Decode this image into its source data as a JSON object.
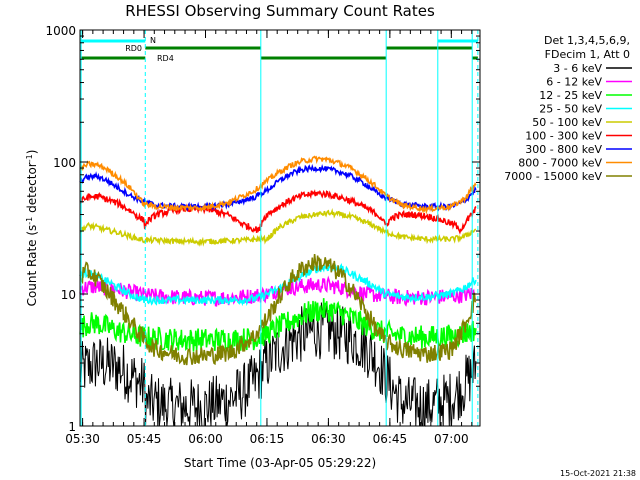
{
  "chart_data": {
    "type": "line",
    "title": "RHESSI Observing Summary Count Rates",
    "xlabel": "Start Time (03-Apr-05 05:29:22)",
    "ylabel_main": "Count Rate (s",
    "ylabel_sup1": "-1",
    "ylabel_mid": " detector",
    "ylabel_sup2": "-1",
    "ylabel_end": ")",
    "yscale": "log",
    "xlim": [
      5.4894,
      7.1167
    ],
    "ylim": [
      1,
      1000
    ],
    "x_ticks": [
      {
        "value": 5.5,
        "label": "05:30"
      },
      {
        "value": 5.75,
        "label": "05:45"
      },
      {
        "value": 6.0,
        "label": "06:00"
      },
      {
        "value": 6.25,
        "label": "06:15"
      },
      {
        "value": 6.5,
        "label": "06:30"
      },
      {
        "value": 6.75,
        "label": "06:45"
      },
      {
        "value": 7.0,
        "label": "07:00"
      }
    ],
    "x_minor_step_hours": 0.041667,
    "y_ticks": [
      {
        "value": 1,
        "label": "1"
      },
      {
        "value": 10,
        "label": "10"
      },
      {
        "value": 100,
        "label": "100"
      },
      {
        "value": 1000,
        "label": "1000"
      }
    ],
    "legend": {
      "placement": "right",
      "header_lines": [
        "Det 1,3,4,5,6,9,",
        "FDecim 1, Att 0"
      ]
    },
    "series": [
      {
        "name": "3 - 6 keV",
        "color": "#000000",
        "noise": 0.22,
        "points": [
          [
            5.49,
            2.6
          ],
          [
            5.52,
            2.8
          ],
          [
            5.56,
            3.0
          ],
          [
            5.6,
            2.9
          ],
          [
            5.64,
            2.8
          ],
          [
            5.67,
            2.6
          ],
          [
            5.71,
            2.3
          ],
          [
            5.75,
            2.0
          ],
          [
            5.76,
            1.5
          ],
          [
            5.8,
            1.5
          ],
          [
            5.85,
            1.4
          ],
          [
            5.9,
            1.4
          ],
          [
            5.95,
            1.4
          ],
          [
            6.0,
            1.4
          ],
          [
            6.05,
            1.5
          ],
          [
            6.1,
            1.6
          ],
          [
            6.15,
            1.8
          ],
          [
            6.2,
            2.2
          ],
          [
            6.25,
            3.0
          ],
          [
            6.3,
            3.8
          ],
          [
            6.35,
            4.5
          ],
          [
            6.4,
            5.0
          ],
          [
            6.45,
            5.3
          ],
          [
            6.5,
            5.3
          ],
          [
            6.55,
            5.0
          ],
          [
            6.6,
            4.6
          ],
          [
            6.65,
            4.0
          ],
          [
            6.7,
            3.1
          ],
          [
            6.73,
            2.4
          ],
          [
            6.8,
            1.5
          ],
          [
            6.9,
            1.4
          ],
          [
            7.0,
            1.6
          ],
          [
            7.05,
            2.0
          ],
          [
            7.1,
            2.8
          ]
        ]
      },
      {
        "name": "6 - 12 keV",
        "color": "#ff00ff",
        "noise": 0.06,
        "points": [
          [
            5.49,
            11
          ],
          [
            5.52,
            11.3
          ],
          [
            5.56,
            11.3
          ],
          [
            5.6,
            11.1
          ],
          [
            5.65,
            10.8
          ],
          [
            5.7,
            10.3
          ],
          [
            5.75,
            9.8
          ],
          [
            5.8,
            9.6
          ],
          [
            5.9,
            9.4
          ],
          [
            6.0,
            9.3
          ],
          [
            6.1,
            9.4
          ],
          [
            6.2,
            9.7
          ],
          [
            6.25,
            10.0
          ],
          [
            6.3,
            10.8
          ],
          [
            6.4,
            11.5
          ],
          [
            6.45,
            11.7
          ],
          [
            6.5,
            11.6
          ],
          [
            6.55,
            11.2
          ],
          [
            6.6,
            10.6
          ],
          [
            6.65,
            10.0
          ],
          [
            6.72,
            9.7
          ],
          [
            6.8,
            9.4
          ],
          [
            6.9,
            9.4
          ],
          [
            7.0,
            9.6
          ],
          [
            7.05,
            9.8
          ],
          [
            7.1,
            10.2
          ]
        ]
      },
      {
        "name": "12 - 25 keV",
        "color": "#00ff00",
        "noise": 0.09,
        "points": [
          [
            5.49,
            5.5
          ],
          [
            5.52,
            6.0
          ],
          [
            5.56,
            6.0
          ],
          [
            5.6,
            5.6
          ],
          [
            5.65,
            5.2
          ],
          [
            5.7,
            4.9
          ],
          [
            5.75,
            4.7
          ],
          [
            5.8,
            4.6
          ],
          [
            5.9,
            4.5
          ],
          [
            6.0,
            4.5
          ],
          [
            6.1,
            4.5
          ],
          [
            6.2,
            4.6
          ],
          [
            6.25,
            5.0
          ],
          [
            6.3,
            5.6
          ],
          [
            6.35,
            6.3
          ],
          [
            6.4,
            7.0
          ],
          [
            6.45,
            7.5
          ],
          [
            6.5,
            7.6
          ],
          [
            6.55,
            7.2
          ],
          [
            6.6,
            6.5
          ],
          [
            6.65,
            5.8
          ],
          [
            6.72,
            5.1
          ],
          [
            6.8,
            4.8
          ],
          [
            6.9,
            4.7
          ],
          [
            7.0,
            4.8
          ],
          [
            7.05,
            5.0
          ],
          [
            7.1,
            5.4
          ]
        ]
      },
      {
        "name": "25 - 50 keV",
        "color": "#00ffff",
        "noise": 0.03,
        "points": [
          [
            5.49,
            14
          ],
          [
            5.52,
            14.5
          ],
          [
            5.56,
            13.5
          ],
          [
            5.6,
            12.5
          ],
          [
            5.65,
            11
          ],
          [
            5.7,
            9.8
          ],
          [
            5.75,
            9.0
          ],
          [
            5.76,
            9.0
          ],
          [
            5.8,
            9.0
          ],
          [
            5.9,
            9.0
          ],
          [
            6.0,
            9.0
          ],
          [
            6.1,
            9.0
          ],
          [
            6.15,
            9.0
          ],
          [
            6.22,
            9.4
          ],
          [
            6.3,
            11
          ],
          [
            6.4,
            14
          ],
          [
            6.45,
            15.5
          ],
          [
            6.5,
            16.0
          ],
          [
            6.55,
            15.5
          ],
          [
            6.6,
            14
          ],
          [
            6.65,
            12.5
          ],
          [
            6.7,
            11
          ],
          [
            6.73,
            10
          ],
          [
            6.8,
            9.5
          ],
          [
            6.9,
            9.5
          ],
          [
            7.0,
            10
          ],
          [
            7.05,
            11
          ],
          [
            7.1,
            13
          ]
        ]
      },
      {
        "name": "50 - 100 keV",
        "color": "#cccc00",
        "noise": 0.02,
        "points": [
          [
            5.49,
            30
          ],
          [
            5.52,
            33
          ],
          [
            5.56,
            32
          ],
          [
            5.6,
            30.5
          ],
          [
            5.65,
            29
          ],
          [
            5.7,
            27
          ],
          [
            5.75,
            25.5
          ],
          [
            5.8,
            25.5
          ],
          [
            5.9,
            25
          ],
          [
            6.0,
            25
          ],
          [
            6.1,
            25.3
          ],
          [
            6.15,
            25.5
          ],
          [
            6.22,
            26
          ],
          [
            6.25,
            26
          ],
          [
            6.3,
            32
          ],
          [
            6.38,
            38
          ],
          [
            6.45,
            40
          ],
          [
            6.5,
            41
          ],
          [
            6.55,
            40
          ],
          [
            6.6,
            38
          ],
          [
            6.65,
            35
          ],
          [
            6.7,
            32
          ],
          [
            6.72,
            30
          ],
          [
            6.8,
            27
          ],
          [
            6.9,
            26
          ],
          [
            7.0,
            26
          ],
          [
            7.05,
            27
          ],
          [
            7.1,
            31
          ]
        ]
      },
      {
        "name": "100 - 300 keV",
        "color": "#ff0000",
        "noise": 0.025,
        "points": [
          [
            5.49,
            50
          ],
          [
            5.52,
            54
          ],
          [
            5.56,
            55
          ],
          [
            5.6,
            52
          ],
          [
            5.65,
            48
          ],
          [
            5.7,
            42
          ],
          [
            5.73,
            38
          ],
          [
            5.75,
            36
          ],
          [
            5.755,
            31
          ],
          [
            5.76,
            35
          ],
          [
            5.8,
            40
          ],
          [
            5.9,
            44
          ],
          [
            6.0,
            44
          ],
          [
            6.05,
            42
          ],
          [
            6.1,
            39
          ],
          [
            6.15,
            34
          ],
          [
            6.2,
            31
          ],
          [
            6.22,
            30.5
          ],
          [
            6.23,
            36
          ],
          [
            6.25,
            40
          ],
          [
            6.3,
            46
          ],
          [
            6.35,
            52
          ],
          [
            6.4,
            56
          ],
          [
            6.45,
            58
          ],
          [
            6.5,
            57
          ],
          [
            6.55,
            54
          ],
          [
            6.6,
            50
          ],
          [
            6.65,
            45
          ],
          [
            6.7,
            40
          ],
          [
            6.72,
            37
          ],
          [
            6.73,
            33
          ],
          [
            6.76,
            38
          ],
          [
            6.8,
            40
          ],
          [
            6.85,
            40
          ],
          [
            6.9,
            39
          ],
          [
            6.95,
            37
          ],
          [
            7.0,
            34
          ],
          [
            7.02,
            33
          ],
          [
            7.03,
            30
          ],
          [
            7.06,
            35
          ],
          [
            7.1,
            44
          ]
        ]
      },
      {
        "name": "300 - 800 keV",
        "color": "#0000ff",
        "noise": 0.02,
        "points": [
          [
            5.49,
            72
          ],
          [
            5.52,
            77
          ],
          [
            5.56,
            78
          ],
          [
            5.6,
            72
          ],
          [
            5.65,
            63
          ],
          [
            5.7,
            55
          ],
          [
            5.75,
            50
          ],
          [
            5.8,
            47
          ],
          [
            5.9,
            46
          ],
          [
            6.0,
            46
          ],
          [
            6.1,
            48
          ],
          [
            6.2,
            54
          ],
          [
            6.25,
            61
          ],
          [
            6.3,
            72
          ],
          [
            6.35,
            82
          ],
          [
            6.4,
            88
          ],
          [
            6.45,
            90
          ],
          [
            6.5,
            88
          ],
          [
            6.55,
            84
          ],
          [
            6.6,
            77
          ],
          [
            6.65,
            68
          ],
          [
            6.7,
            58
          ],
          [
            6.73,
            54
          ],
          [
            6.8,
            48
          ],
          [
            6.9,
            46
          ],
          [
            7.0,
            46
          ],
          [
            7.05,
            50
          ],
          [
            7.1,
            62
          ]
        ]
      },
      {
        "name": "800 - 7000 keV",
        "color": "#ff8c00",
        "noise": 0.02,
        "points": [
          [
            5.49,
            88
          ],
          [
            5.52,
            96
          ],
          [
            5.56,
            95
          ],
          [
            5.6,
            88
          ],
          [
            5.65,
            75
          ],
          [
            5.7,
            62
          ],
          [
            5.75,
            48
          ],
          [
            5.8,
            46
          ],
          [
            5.9,
            45
          ],
          [
            6.0,
            45
          ],
          [
            6.1,
            50
          ],
          [
            6.2,
            61
          ],
          [
            6.25,
            72
          ],
          [
            6.3,
            84
          ],
          [
            6.35,
            95
          ],
          [
            6.4,
            102
          ],
          [
            6.45,
            106
          ],
          [
            6.5,
            104
          ],
          [
            6.55,
            97
          ],
          [
            6.6,
            88
          ],
          [
            6.65,
            76
          ],
          [
            6.7,
            64
          ],
          [
            6.73,
            56
          ],
          [
            6.8,
            47
          ],
          [
            6.9,
            44
          ],
          [
            7.0,
            46
          ],
          [
            7.05,
            52
          ],
          [
            7.1,
            68
          ]
        ]
      },
      {
        "name": "7000 - 15000 keV",
        "color": "#808000",
        "noise": 0.07,
        "points": [
          [
            5.49,
            13.5
          ],
          [
            5.52,
            15
          ],
          [
            5.56,
            13
          ],
          [
            5.6,
            10.5
          ],
          [
            5.65,
            8.0
          ],
          [
            5.7,
            6.0
          ],
          [
            5.75,
            4.5
          ],
          [
            5.8,
            3.8
          ],
          [
            5.9,
            3.4
          ],
          [
            6.0,
            3.4
          ],
          [
            6.1,
            3.6
          ],
          [
            6.2,
            4.8
          ],
          [
            6.25,
            6.5
          ],
          [
            6.3,
            9.5
          ],
          [
            6.35,
            13
          ],
          [
            6.4,
            16
          ],
          [
            6.45,
            17.5
          ],
          [
            6.5,
            16.5
          ],
          [
            6.55,
            14
          ],
          [
            6.6,
            10.5
          ],
          [
            6.65,
            7.5
          ],
          [
            6.7,
            5.2
          ],
          [
            6.73,
            4.4
          ],
          [
            6.8,
            3.8
          ],
          [
            6.9,
            3.5
          ],
          [
            7.0,
            3.8
          ],
          [
            7.05,
            5.5
          ],
          [
            7.1,
            9.5
          ]
        ]
      }
    ],
    "vertical_lines": [
      {
        "x": 5.494,
        "style": "solid"
      },
      {
        "x": 5.755,
        "style": "dashed"
      },
      {
        "x": 6.225,
        "style": "solid"
      },
      {
        "x": 6.735,
        "style": "solid"
      },
      {
        "x": 6.945,
        "style": "solid"
      },
      {
        "x": 7.085,
        "style": "solid"
      },
      {
        "x": 7.108,
        "style": "dashed"
      }
    ],
    "status_bars": [
      {
        "label": "N",
        "color": "#00ffff",
        "segments": [
          [
            5.494,
            5.755
          ],
          [
            6.945,
            7.108
          ]
        ]
      },
      {
        "label": "RD0",
        "color": "#008000",
        "segments": [
          [
            5.755,
            6.225
          ],
          [
            6.735,
            7.085
          ]
        ]
      },
      {
        "label": "RD4",
        "color": "#008000",
        "segments": [
          [
            5.494,
            5.755
          ],
          [
            6.225,
            6.735
          ],
          [
            7.085,
            7.108
          ]
        ]
      }
    ],
    "timestamp": "15-Oct-2021 21:38"
  }
}
